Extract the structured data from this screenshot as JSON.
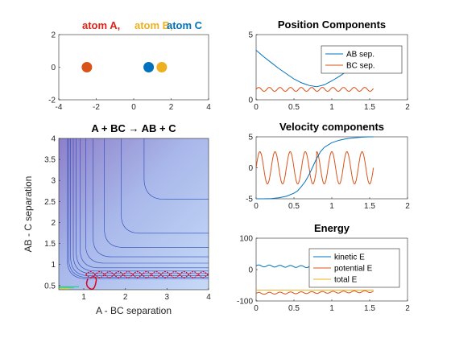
{
  "colors": {
    "blue": "#0072BD",
    "orange": "#D95319",
    "yellow": "#EDB120",
    "red_atomA": "#D95319",
    "surface_bg": "#C6DAF7",
    "surface_dark": "#8D7FC9",
    "contour": "#2B48B8",
    "trajectory": "#E0001B"
  },
  "chart_data": [
    {
      "id": "atoms",
      "type": "scatter",
      "title": "",
      "legend_labels": [
        {
          "text": "atom A,",
          "color": "#D9241A"
        },
        {
          "text": "atom B,",
          "color": "#EDB120"
        },
        {
          "text": "atom C",
          "color": "#0072BD"
        }
      ],
      "xlim": [
        -4,
        4
      ],
      "ylim": [
        -2,
        2
      ],
      "xticks": [
        "-4",
        "-2",
        "0",
        "2",
        "4"
      ],
      "yticks": [
        "-2",
        "0",
        "2"
      ],
      "points": [
        {
          "name": "atom A",
          "x": -2.5,
          "y": 0,
          "color": "#D95319"
        },
        {
          "name": "atom C",
          "x": 0.8,
          "y": 0,
          "color": "#0072BD"
        },
        {
          "name": "atom B",
          "x": 1.5,
          "y": 0,
          "color": "#EDB120"
        }
      ]
    },
    {
      "id": "surface",
      "type": "contour",
      "title": "A + BC → AB + C",
      "xlabel": "A - BC separation",
      "ylabel": "AB - C separation",
      "xlim": [
        0.4,
        4
      ],
      "ylim": [
        0.4,
        4
      ],
      "xticks": [
        "1",
        "2",
        "3",
        "4"
      ],
      "yticks": [
        "0.5",
        "1",
        "1.5",
        "2",
        "2.5",
        "3",
        "3.5",
        "4"
      ]
    },
    {
      "id": "position",
      "type": "line",
      "title": "Position Components",
      "xlim": [
        0,
        2
      ],
      "ylim": [
        0,
        5
      ],
      "xticks": [
        "0",
        "0.5",
        "1",
        "1.5",
        "2"
      ],
      "yticks": [
        "0",
        "5"
      ],
      "legend_position": "top-right",
      "series": [
        {
          "name": "AB sep.",
          "color": "#0072BD",
          "x": [
            0,
            0.1,
            0.2,
            0.3,
            0.4,
            0.5,
            0.6,
            0.7,
            0.8,
            0.9,
            1.0,
            1.1,
            1.2,
            1.3,
            1.4,
            1.5,
            1.55
          ],
          "y": [
            3.8,
            3.3,
            2.85,
            2.4,
            2.0,
            1.6,
            1.3,
            1.1,
            1.0,
            1.15,
            1.45,
            1.8,
            2.2,
            2.6,
            3.05,
            3.5,
            3.75
          ]
        },
        {
          "name": "BC sep.",
          "color": "#D95319",
          "wave": {
            "start": 0,
            "end": 1.55,
            "base": 0.8,
            "amp": 0.15,
            "period": 0.14
          }
        }
      ]
    },
    {
      "id": "velocity",
      "type": "line",
      "title": "Velocity components",
      "xlim": [
        0,
        2
      ],
      "ylim": [
        -5,
        5
      ],
      "xticks": [
        "0",
        "0.5",
        "1",
        "1.5",
        "2"
      ],
      "yticks": [
        "-5",
        "0",
        "5"
      ],
      "series": [
        {
          "name": "",
          "color": "#D95319",
          "wave": {
            "start": 0,
            "end": 1.55,
            "base": 0,
            "amp": 2.6,
            "period": 0.2,
            "phase_shift_at": 0.8
          }
        },
        {
          "name": "",
          "color": "#0072BD",
          "x": [
            0,
            0.1,
            0.2,
            0.3,
            0.4,
            0.5,
            0.55,
            0.6,
            0.65,
            0.7,
            0.75,
            0.8,
            0.85,
            0.9,
            1.0,
            1.1,
            1.2,
            1.3,
            1.4,
            1.5,
            1.55
          ],
          "y": [
            -5,
            -5,
            -4.97,
            -4.85,
            -4.6,
            -4.1,
            -3.7,
            -3.0,
            -2.2,
            -1.1,
            0.2,
            1.5,
            2.6,
            3.3,
            4.05,
            4.45,
            4.7,
            4.85,
            4.95,
            5,
            5
          ]
        }
      ]
    },
    {
      "id": "energy",
      "type": "line",
      "title": "Energy",
      "xlim": [
        0,
        2
      ],
      "ylim": [
        -100,
        100
      ],
      "xticks": [
        "0",
        "0.5",
        "1",
        "1.5",
        "2"
      ],
      "yticks": [
        "-100",
        "0",
        "100"
      ],
      "legend_position": "top-right",
      "series": [
        {
          "name": "kinetic E",
          "color": "#0072BD",
          "wave": {
            "start": 0,
            "end": 1.55,
            "base": 12,
            "amp": 3,
            "period": 0.14,
            "trend": -6
          }
        },
        {
          "name": "potential E",
          "color": "#D95319",
          "wave": {
            "start": 0,
            "end": 1.55,
            "base": -76,
            "amp": 3,
            "period": 0.14,
            "trend": 6
          }
        },
        {
          "name": "total E",
          "color": "#EDB120",
          "x": [
            0,
            1.55
          ],
          "y": [
            -65,
            -65
          ]
        }
      ]
    }
  ]
}
